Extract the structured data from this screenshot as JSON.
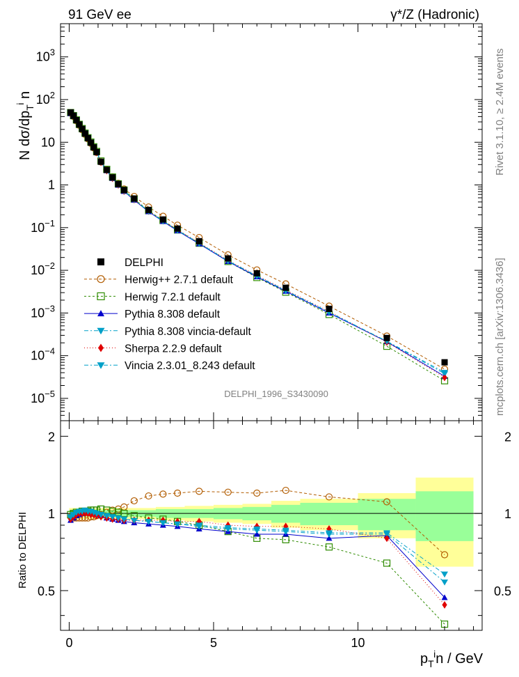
{
  "header": {
    "left_title": "91 GeV ee",
    "right_title": "γ*/Z (Hadronic)"
  },
  "side_labels": {
    "rivet": "Rivet 3.1.10, ≥ 2.4M events",
    "mcplots": "mcplots.cern.ch [arXiv:1306.3436]"
  },
  "analysis_id": "DELPHI_1996_S3430090",
  "axes": {
    "ylabel_main": "N dσ/dp_T^i n",
    "ylabel_ratio": "Ratio to DELPHI",
    "xlabel": "p_T^i n / GeV",
    "x_ticks": [
      "0",
      "5",
      "10"
    ],
    "y_main_ticks": [
      "10^{-5}",
      "10^{-4}",
      "10^{-3}",
      "10^{-2}",
      "10^{-1}",
      "1",
      "10",
      "10^{2}",
      "10^{3}"
    ],
    "y_ratio_ticks": [
      "0.5",
      "1",
      "2"
    ]
  },
  "chart_data": {
    "type": "line",
    "xlim": [
      -0.3,
      14.3
    ],
    "ylim_main": [
      3e-06,
      6000
    ],
    "ylim_ratio": [
      0.35,
      2.3
    ],
    "log_y_main": true,
    "legend_position": "center-left",
    "x": [
      0.05,
      0.15,
      0.25,
      0.35,
      0.45,
      0.55,
      0.65,
      0.75,
      0.85,
      0.95,
      1.1,
      1.3,
      1.5,
      1.7,
      1.9,
      2.25,
      2.75,
      3.25,
      3.75,
      4.5,
      5.5,
      6.5,
      7.5,
      9.0,
      11.0,
      13.0
    ],
    "reference": {
      "name": "DELPHI",
      "color": "#000000",
      "values": [
        50,
        42,
        33,
        26,
        20.5,
        16,
        12.5,
        9.8,
        7.6,
        5.9,
        3.5,
        2.25,
        1.5,
        1.05,
        0.76,
        0.48,
        0.26,
        0.155,
        0.095,
        0.048,
        0.019,
        0.0085,
        0.0039,
        0.00125,
        0.00026,
        7e-05
      ],
      "band_inner": [
        {
          "x": [
            0,
            1
          ],
          "half": 0.03
        },
        {
          "x": [
            1,
            2
          ],
          "half": 0.03
        },
        {
          "x": [
            2,
            3
          ],
          "half": 0.03
        },
        {
          "x": [
            3,
            4
          ],
          "half": 0.04
        },
        {
          "x": [
            4,
            5
          ],
          "half": 0.04
        },
        {
          "x": [
            5,
            6
          ],
          "half": 0.05
        },
        {
          "x": [
            6,
            7
          ],
          "half": 0.06
        },
        {
          "x": [
            7,
            8
          ],
          "half": 0.08
        },
        {
          "x": [
            8,
            10
          ],
          "half": 0.1
        },
        {
          "x": [
            10,
            12
          ],
          "half": 0.14
        },
        {
          "x": [
            12,
            14
          ],
          "half": 0.22
        }
      ],
      "band_outer": [
        {
          "x": [
            0,
            1
          ],
          "half": 0.05
        },
        {
          "x": [
            1,
            2
          ],
          "half": 0.05
        },
        {
          "x": [
            2,
            3
          ],
          "half": 0.05
        },
        {
          "x": [
            3,
            4
          ],
          "half": 0.06
        },
        {
          "x": [
            4,
            5
          ],
          "half": 0.07
        },
        {
          "x": [
            5,
            6
          ],
          "half": 0.08
        },
        {
          "x": [
            6,
            7
          ],
          "half": 0.09
        },
        {
          "x": [
            7,
            8
          ],
          "half": 0.12
        },
        {
          "x": [
            8,
            10
          ],
          "half": 0.14
        },
        {
          "x": [
            10,
            12
          ],
          "half": 0.2
        },
        {
          "x": [
            12,
            14
          ],
          "half": 0.38
        }
      ]
    },
    "series": [
      {
        "name": "Herwig++ 2.7.1 default",
        "color": "#b25c00",
        "marker": "open-circle",
        "dash": "4,3",
        "ratio": [
          0.97,
          0.96,
          0.96,
          0.96,
          0.96,
          0.96,
          0.96,
          0.97,
          0.97,
          0.98,
          0.99,
          1.01,
          1.03,
          1.04,
          1.06,
          1.12,
          1.17,
          1.19,
          1.2,
          1.22,
          1.21,
          1.2,
          1.23,
          1.16,
          1.11,
          0.69
        ]
      },
      {
        "name": "Herwig 7.2.1 default",
        "color": "#2e8b00",
        "marker": "open-square",
        "dash": "3,3",
        "ratio": [
          0.99,
          1.0,
          1.01,
          1.01,
          1.02,
          1.02,
          1.02,
          1.03,
          1.03,
          1.03,
          1.04,
          1.03,
          1.02,
          1.01,
          1.0,
          0.98,
          0.96,
          0.95,
          0.93,
          0.9,
          0.85,
          0.8,
          0.79,
          0.74,
          0.64,
          0.37
        ]
      },
      {
        "name": "Pythia 8.308 default",
        "color": "#0000cc",
        "marker": "triangle-up",
        "dash": "",
        "ratio": [
          0.94,
          0.96,
          0.98,
          0.99,
          1.0,
          1.01,
          1.01,
          1.0,
          1.0,
          0.99,
          0.98,
          0.96,
          0.95,
          0.94,
          0.93,
          0.92,
          0.91,
          0.9,
          0.89,
          0.87,
          0.85,
          0.83,
          0.83,
          0.8,
          0.82,
          0.47
        ]
      },
      {
        "name": "Pythia 8.308 vincia-default",
        "color": "#00a0c8",
        "marker": "triangle-down",
        "dash": "6,3,2,3",
        "ratio": [
          0.96,
          0.98,
          1.0,
          1.01,
          1.02,
          1.02,
          1.02,
          1.01,
          1.01,
          1.0,
          0.99,
          0.98,
          0.97,
          0.96,
          0.95,
          0.94,
          0.93,
          0.92,
          0.91,
          0.89,
          0.87,
          0.86,
          0.85,
          0.83,
          0.83,
          0.54
        ]
      },
      {
        "name": "Sherpa 2.2.9 default",
        "color": "#e00000",
        "marker": "diamond",
        "dash": "1,3",
        "ratio": [
          0.95,
          0.97,
          0.99,
          1.0,
          1.0,
          1.0,
          1.0,
          0.99,
          0.99,
          0.98,
          0.97,
          0.96,
          0.95,
          0.95,
          0.94,
          0.94,
          0.94,
          0.94,
          0.93,
          0.93,
          0.9,
          0.89,
          0.89,
          0.87,
          0.8,
          0.44
        ]
      },
      {
        "name": "Vincia 2.3.01_8.243 default",
        "color": "#00a0c8",
        "marker": "triangle-down",
        "dash": "6,3,2,3",
        "ratio": [
          0.97,
          0.99,
          1.01,
          1.02,
          1.02,
          1.03,
          1.02,
          1.02,
          1.01,
          1.0,
          0.99,
          0.98,
          0.97,
          0.96,
          0.95,
          0.94,
          0.93,
          0.92,
          0.91,
          0.9,
          0.88,
          0.87,
          0.86,
          0.84,
          0.84,
          0.58
        ]
      }
    ]
  }
}
